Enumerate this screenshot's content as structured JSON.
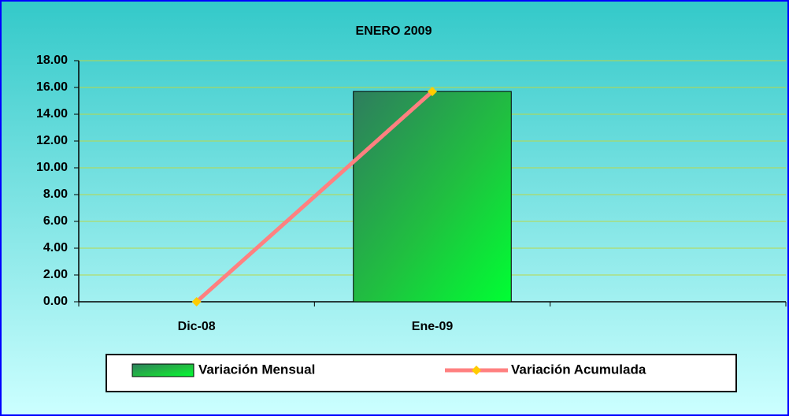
{
  "chart_data": {
    "type": "bar",
    "title": "ENERO 2009",
    "categories": [
      "Dic-08",
      "Ene-09",
      null
    ],
    "series": [
      {
        "name": "Variación Mensual",
        "type": "bar",
        "color": "#00ff40",
        "values": [
          0,
          15.7,
          null
        ]
      },
      {
        "name": "Variación Acumulada",
        "type": "line",
        "color": "#ff8080",
        "marker_color": "#ffcc00",
        "values": [
          0,
          15.7,
          null
        ]
      }
    ],
    "ylim": [
      0,
      18
    ],
    "yticks": [
      {
        "value": 0,
        "label": "0.00"
      },
      {
        "value": 2,
        "label": "2.00"
      },
      {
        "value": 4,
        "label": "4.00"
      },
      {
        "value": 6,
        "label": "6.00"
      },
      {
        "value": 8,
        "label": "8.00"
      },
      {
        "value": 10,
        "label": "10.00"
      },
      {
        "value": 12,
        "label": "12.00"
      },
      {
        "value": 14,
        "label": "14.00"
      },
      {
        "value": 16,
        "label": "16.00"
      },
      {
        "value": 18,
        "label": "18.00"
      }
    ],
    "grid": true,
    "legend": "bottom"
  }
}
